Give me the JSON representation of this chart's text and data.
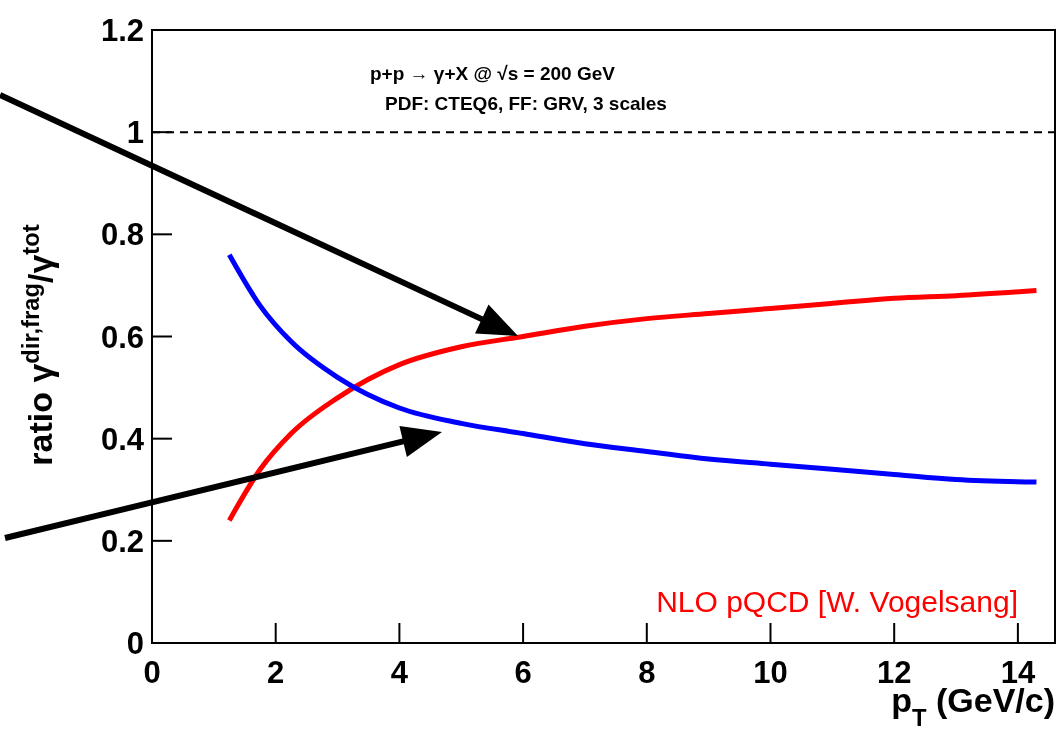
{
  "chart_data": {
    "type": "line",
    "xlabel": "p$_{T}$ (GeV/c)",
    "ylabel": "ratio γ$^{dir,frag}$/γ$^{tot}$",
    "annotations": [
      "p+p → γ+X @ √s = 200 GeV",
      "PDF: CTEQ6, FF: GRV, 3 scales",
      "NLO pQCD [W. Vogelsang]"
    ],
    "x": [
      1.25,
      1.75,
      2.25,
      3,
      4,
      5,
      6,
      7,
      8,
      9,
      10,
      11,
      12,
      13,
      14.3
    ],
    "series": [
      {
        "color": "#ff0000",
        "values": [
          0.24,
          0.34,
          0.41,
          0.48,
          0.545,
          0.58,
          0.6,
          0.62,
          0.635,
          0.645,
          0.655,
          0.665,
          0.675,
          0.68,
          0.69
        ]
      },
      {
        "color": "#0000ff",
        "values": [
          0.76,
          0.66,
          0.59,
          0.52,
          0.46,
          0.43,
          0.41,
          0.39,
          0.375,
          0.36,
          0.35,
          0.34,
          0.33,
          0.32,
          0.315
        ]
      }
    ],
    "xlim": [
      0,
      14.6
    ],
    "ylim": [
      0,
      1.2
    ],
    "xticks": [
      0,
      2,
      4,
      6,
      8,
      10,
      12,
      14
    ],
    "yticks": [
      0,
      0.2,
      0.4,
      0.6,
      0.8,
      1,
      1.2
    ],
    "ref_lines": [
      {
        "axis": "y",
        "value": 1,
        "line_style": "dashed",
        "color": "#000000"
      }
    ],
    "grid": false,
    "line_style": "solid",
    "marker": "none"
  }
}
